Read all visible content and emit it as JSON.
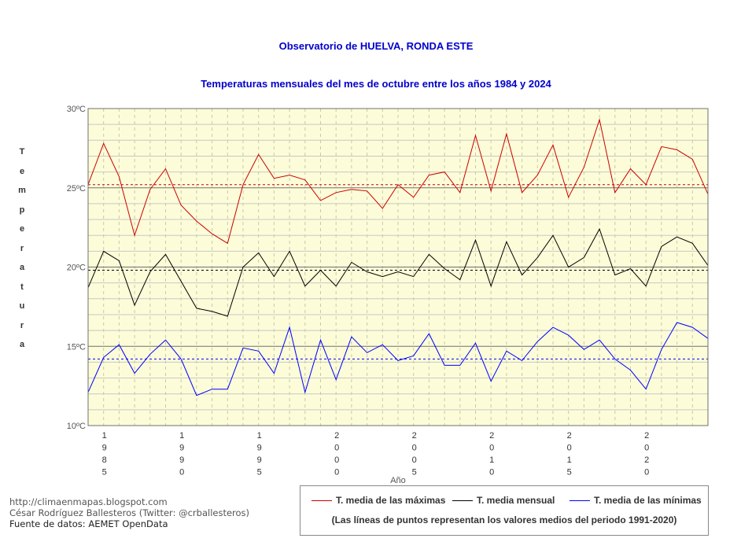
{
  "titles": {
    "line1": "Observatorio de HUELVA, RONDA ESTE",
    "line2": "Temperaturas mensuales del mes de octubre entre los años 1984 y 2024"
  },
  "chart_data": {
    "type": "line",
    "x": [
      1984,
      1985,
      1986,
      1987,
      1988,
      1989,
      1990,
      1991,
      1992,
      1993,
      1994,
      1995,
      1996,
      1997,
      1998,
      1999,
      2000,
      2001,
      2002,
      2003,
      2004,
      2005,
      2006,
      2007,
      2008,
      2009,
      2010,
      2011,
      2012,
      2013,
      2014,
      2015,
      2016,
      2017,
      2018,
      2019,
      2020,
      2021,
      2022,
      2023,
      2024
    ],
    "series": [
      {
        "name": "T. media de las máximas",
        "color": "#cc0000",
        "mean_1991_2020": 25.2,
        "values": [
          25.2,
          27.8,
          25.7,
          22.0,
          24.9,
          26.2,
          23.9,
          22.9,
          22.1,
          21.5,
          25.2,
          27.1,
          25.6,
          25.8,
          25.5,
          24.2,
          24.7,
          24.9,
          24.8,
          23.7,
          25.2,
          24.4,
          25.8,
          26.0,
          24.7,
          28.3,
          24.8,
          28.4,
          24.7,
          25.8,
          27.7,
          24.4,
          26.3,
          29.3,
          24.7,
          26.2,
          25.2,
          27.6,
          27.4,
          26.8,
          24.6
        ]
      },
      {
        "name": "T. media mensual",
        "color": "#000000",
        "mean_1991_2020": 19.8,
        "values": [
          18.7,
          21.0,
          20.4,
          17.6,
          19.7,
          20.8,
          19.1,
          17.4,
          17.2,
          16.9,
          20.0,
          20.9,
          19.4,
          21.0,
          18.8,
          19.8,
          18.8,
          20.3,
          19.7,
          19.4,
          19.7,
          19.4,
          20.8,
          19.9,
          19.2,
          21.7,
          18.8,
          21.6,
          19.5,
          20.6,
          22.0,
          20.0,
          20.6,
          22.4,
          19.5,
          19.9,
          18.8,
          21.3,
          21.9,
          21.5,
          20.1
        ]
      },
      {
        "name": "T. media de las mínimas",
        "color": "#0000ff",
        "mean_1991_2020": 14.2,
        "values": [
          12.1,
          14.3,
          15.1,
          13.3,
          14.5,
          15.4,
          14.2,
          11.9,
          12.3,
          12.3,
          14.9,
          14.7,
          13.3,
          16.2,
          12.1,
          15.4,
          12.9,
          15.6,
          14.6,
          15.1,
          14.1,
          14.4,
          15.8,
          13.8,
          13.8,
          15.2,
          12.8,
          14.7,
          14.1,
          15.3,
          16.2,
          15.7,
          14.8,
          15.4,
          14.2,
          13.5,
          12.3,
          14.8,
          16.5,
          16.2,
          15.5
        ]
      }
    ],
    "ylim": [
      10,
      30
    ],
    "yticks": [
      "10ºC",
      "15ºC",
      "20ºC",
      "25ºC",
      "30ºC"
    ],
    "ylabel": "Temperatura",
    "xlabel": "Año",
    "xtick_labels": [
      {
        "year": 1985,
        "label": [
          "1",
          "9",
          "8",
          "5"
        ]
      },
      {
        "year": 1990,
        "label": [
          "1",
          "9",
          "9",
          "0"
        ]
      },
      {
        "year": 1995,
        "label": [
          "1",
          "9",
          "9",
          "5"
        ]
      },
      {
        "year": 2000,
        "label": [
          "2",
          "0",
          "0",
          "0"
        ]
      },
      {
        "year": 2005,
        "label": [
          "2",
          "0",
          "0",
          "5"
        ]
      },
      {
        "year": 2010,
        "label": [
          "2",
          "0",
          "1",
          "0"
        ]
      },
      {
        "year": 2015,
        "label": [
          "2",
          "0",
          "1",
          "5"
        ]
      },
      {
        "year": 2020,
        "label": [
          "2",
          "0",
          "2",
          "0"
        ]
      }
    ],
    "background_color": "#fcfcd8",
    "grid": true,
    "legend_position": "bottom-right"
  },
  "legend": {
    "note": "(Las líneas de puntos representan los valores medios del periodo 1991-2020)"
  },
  "credits": {
    "line1": "http://climaenmapas.blogspot.com",
    "line2": "César Rodríguez Ballesteros (Twitter: @crballesteros)",
    "line3": "Fuente de datos: AEMET OpenData"
  }
}
